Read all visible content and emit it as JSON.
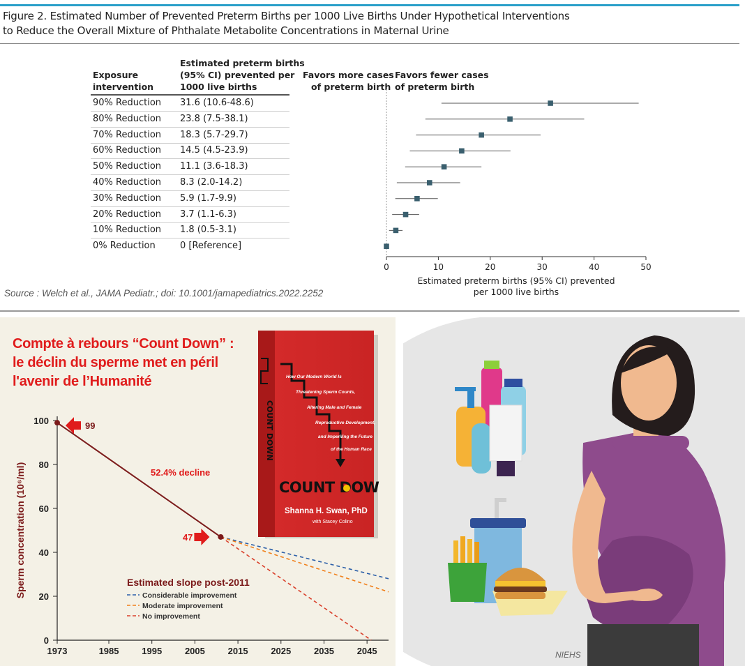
{
  "figure": {
    "title_line1": "Figure 2. Estimated Number of Prevented Preterm Births per 1000 Live Births Under Hypothetical Interventions",
    "title_line2": "to Reduce the Overall Mixture of Phthalate Metabolite Concentrations in Maternal Urine",
    "col1_header": [
      "Exposure",
      "intervention"
    ],
    "col2_header": [
      "Estimated preterm births",
      "(95% CI) prevented per",
      "1000 live births"
    ],
    "favors_left": [
      "Favors more cases",
      "of preterm birth"
    ],
    "favors_right": [
      "Favors fewer cases",
      "of preterm birth"
    ],
    "source": "Source : Welch et al., JAMA Pediatr.; doi: 10.1001/jamapediatrics.2022.2252"
  },
  "sperm_panel": {
    "title_lines": [
      "Compte à rebours “Count Down” :",
      "le déclin du sperme met en péril",
      "l'avenir de l’Humanité"
    ]
  },
  "book": {
    "title": "COUNT DOWN",
    "spine_title": "COUNT DOWN",
    "author": "Shanna H. Swan, PhD",
    "coauthor": "with Stacey Colino",
    "subtitle_lines": [
      "How Our Modern World Is",
      "Threatening Sperm Counts,",
      "Altering Male and Female",
      "Reproductive Development,",
      "and Imperiling the Future",
      "of the Human Race"
    ]
  },
  "illustration": {
    "credit": "NIEHS"
  },
  "colors": {
    "marker": "#3a5f6e",
    "decline": "#7b1a1a",
    "accent_red": "#e01c1c",
    "blue_dash": "#2b5fa8",
    "orange_dash": "#f07f1a",
    "red_dash": "#d9412c",
    "book_red": "#d42a2a",
    "dress": "#8e4b8c"
  },
  "chart_data": [
    {
      "type": "forest",
      "x_axis": {
        "label_lines": [
          "Estimated preterm births (95% CI) prevented",
          "per 1000 live births"
        ],
        "range": [
          0,
          50
        ],
        "ticks": [
          0,
          10,
          20,
          30,
          40,
          50
        ]
      },
      "rows": [
        {
          "label": "90% Reduction",
          "text": "31.6 (10.6-48.6)",
          "est": 31.6,
          "lo": 10.6,
          "hi": 48.6
        },
        {
          "label": "80% Reduction",
          "text": "23.8 (7.5-38.1)",
          "est": 23.8,
          "lo": 7.5,
          "hi": 38.1
        },
        {
          "label": "70% Reduction",
          "text": "18.3 (5.7-29.7)",
          "est": 18.3,
          "lo": 5.7,
          "hi": 29.7
        },
        {
          "label": "60% Reduction",
          "text": "14.5 (4.5-23.9)",
          "est": 14.5,
          "lo": 4.5,
          "hi": 23.9
        },
        {
          "label": "50% Reduction",
          "text": "11.1 (3.6-18.3)",
          "est": 11.1,
          "lo": 3.6,
          "hi": 18.3
        },
        {
          "label": "40% Reduction",
          "text": "8.3 (2.0-14.2)",
          "est": 8.3,
          "lo": 2.0,
          "hi": 14.2
        },
        {
          "label": "30% Reduction",
          "text": "5.9 (1.7-9.9)",
          "est": 5.9,
          "lo": 1.7,
          "hi": 9.9
        },
        {
          "label": "20% Reduction",
          "text": "3.7 (1.1-6.3)",
          "est": 3.7,
          "lo": 1.1,
          "hi": 6.3
        },
        {
          "label": "10% Reduction",
          "text": "1.8 (0.5-3.1)",
          "est": 1.8,
          "lo": 0.5,
          "hi": 3.1
        },
        {
          "label": "0% Reduction",
          "text": "0 [Reference]",
          "est": 0,
          "lo": 0,
          "hi": 0
        }
      ]
    },
    {
      "type": "line",
      "y_axis": {
        "label": "Sperm concentration (10⁶/ml)",
        "range": [
          0,
          100
        ],
        "ticks": [
          0,
          20,
          40,
          60,
          80,
          100
        ]
      },
      "x_axis": {
        "range": [
          1973,
          2050
        ],
        "ticks": [
          1973,
          1985,
          1995,
          2005,
          2015,
          2025,
          2035,
          2045
        ]
      },
      "series": [
        {
          "kind": "decline",
          "points": [
            [
              1973,
              99
            ],
            [
              2011,
              47
            ]
          ]
        },
        {
          "name": "Considerable improvement",
          "kind": "blue",
          "points": [
            [
              2011,
              47
            ],
            [
              2050,
              28
            ]
          ]
        },
        {
          "name": "Moderate improvement",
          "kind": "orange",
          "points": [
            [
              2011,
              47
            ],
            [
              2050,
              22
            ]
          ]
        },
        {
          "name": "No improvement",
          "kind": "red",
          "points": [
            [
              2011,
              47
            ],
            [
              2046,
              0
            ]
          ]
        }
      ],
      "annotations": {
        "start_value": "99",
        "end_value": "47",
        "decline_text": "52.4% decline",
        "legend_title": "Estimated slope post-2011"
      }
    }
  ]
}
